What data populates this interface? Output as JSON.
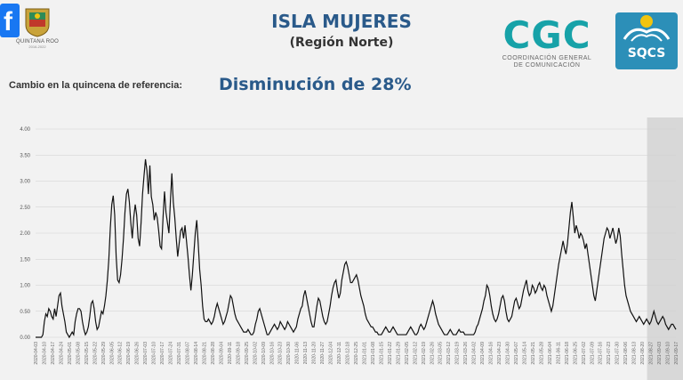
{
  "header": {
    "state_name": "QUINTANA ROO",
    "state_period": "2016-2022",
    "title": "ISLA MUJERES",
    "subtitle": "(Región Norte)",
    "cgc_logo": "CGC",
    "cgc_line1": "COORDINACIÓN GENERAL",
    "cgc_line2": "DE COMUNICACIÓN",
    "sqcs_logo": "SQCS",
    "change_label": "Cambio en la quincena de referencia:",
    "change_value": "Disminución de 28%"
  },
  "icons": {
    "facebook": "facebook-icon",
    "qroo_shield": "quintana-roo-shield-icon",
    "sqcs_emblem": "sqcs-emblem-icon"
  },
  "colors": {
    "title": "#2a5a8a",
    "cgc": "#17a2a8",
    "line": "#111111",
    "highlight": "#d3d3d3"
  },
  "chart_data": {
    "type": "line",
    "ylim": [
      0,
      4
    ],
    "yticks": [
      "0.00",
      "0.50",
      "1.00",
      "1.50",
      "2.00",
      "2.50",
      "3.00",
      "3.50",
      "4.00"
    ],
    "grid": true,
    "highlight_region": "last-fortnight",
    "xtick_labels": [
      "2020-04-03",
      "2020-04-10",
      "2020-04-17",
      "2020-04-24",
      "2020-05-01",
      "2020-05-08",
      "2020-05-15",
      "2020-05-22",
      "2020-05-29",
      "2020-06-05",
      "2020-06-12",
      "2020-06-19",
      "2020-06-26",
      "2020-07-03",
      "2020-07-10",
      "2020-07-17",
      "2020-07-24",
      "2020-07-31",
      "2020-08-07",
      "2020-08-14",
      "2020-08-21",
      "2020-08-28",
      "2020-09-04",
      "2020-09-11",
      "2020-09-18",
      "2020-09-25",
      "2020-10-02",
      "2020-10-09",
      "2020-10-16",
      "2020-10-23",
      "2020-10-30",
      "2020-11-06",
      "2020-11-13",
      "2020-11-20",
      "2020-11-27",
      "2020-12-04",
      "2020-12-11",
      "2020-12-18",
      "2020-12-25",
      "2021-01-01",
      "2021-01-08",
      "2021-01-15",
      "2021-01-22",
      "2021-01-29",
      "2021-02-05",
      "2021-02-12",
      "2021-02-19",
      "2021-02-26",
      "2021-03-05",
      "2021-03-12",
      "2021-03-19",
      "2021-03-26",
      "2021-04-02",
      "2021-04-09",
      "2021-04-16",
      "2021-04-23",
      "2021-04-30",
      "2021-05-07",
      "2021-05-14",
      "2021-05-21",
      "2021-05-28",
      "2021-06-04",
      "2021-06-11",
      "2021-06-18",
      "2021-06-25",
      "2021-07-02",
      "2021-07-09",
      "2021-07-16",
      "2021-07-23",
      "2021-07-30",
      "2021-08-06",
      "2021-08-13",
      "2021-08-20",
      "2021-08-27",
      "2021-09-03",
      "2021-09-10",
      "2021-09-17"
    ],
    "values": [
      0.0,
      0.0,
      0.0,
      0.0,
      0.0,
      0.05,
      0.3,
      0.45,
      0.4,
      0.55,
      0.5,
      0.4,
      0.35,
      0.55,
      0.4,
      0.6,
      0.8,
      0.85,
      0.6,
      0.45,
      0.3,
      0.1,
      0.05,
      0.0,
      0.05,
      0.1,
      0.05,
      0.3,
      0.45,
      0.55,
      0.55,
      0.5,
      0.3,
      0.15,
      0.05,
      0.1,
      0.2,
      0.4,
      0.65,
      0.7,
      0.55,
      0.3,
      0.15,
      0.2,
      0.35,
      0.5,
      0.45,
      0.6,
      0.8,
      1.1,
      1.5,
      2.1,
      2.55,
      2.72,
      2.35,
      1.55,
      1.1,
      1.05,
      1.2,
      1.5,
      1.9,
      2.4,
      2.75,
      2.85,
      2.6,
      2.2,
      1.9,
      2.3,
      2.55,
      2.35,
      1.9,
      1.75,
      2.2,
      2.75,
      3.1,
      3.42,
      3.2,
      2.75,
      3.3,
      2.7,
      2.55,
      2.25,
      2.4,
      2.3,
      2.05,
      1.75,
      1.7,
      2.3,
      2.8,
      2.4,
      2.2,
      2.0,
      2.6,
      3.15,
      2.6,
      2.3,
      1.9,
      1.55,
      1.8,
      2.05,
      2.1,
      1.9,
      2.15,
      1.85,
      1.55,
      1.2,
      0.9,
      1.2,
      1.6,
      2.0,
      2.25,
      1.8,
      1.3,
      1.0,
      0.6,
      0.35,
      0.3,
      0.3,
      0.35,
      0.3,
      0.25,
      0.3,
      0.4,
      0.55,
      0.65,
      0.55,
      0.45,
      0.35,
      0.25,
      0.3,
      0.4,
      0.5,
      0.65,
      0.8,
      0.75,
      0.6,
      0.45,
      0.35,
      0.3,
      0.25,
      0.2,
      0.15,
      0.1,
      0.1,
      0.1,
      0.15,
      0.1,
      0.05,
      0.05,
      0.1,
      0.25,
      0.35,
      0.5,
      0.55,
      0.45,
      0.35,
      0.25,
      0.15,
      0.05,
      0.05,
      0.1,
      0.15,
      0.2,
      0.25,
      0.2,
      0.15,
      0.2,
      0.3,
      0.25,
      0.2,
      0.15,
      0.2,
      0.3,
      0.25,
      0.2,
      0.15,
      0.1,
      0.15,
      0.2,
      0.35,
      0.45,
      0.55,
      0.6,
      0.8,
      0.9,
      0.75,
      0.6,
      0.45,
      0.3,
      0.2,
      0.2,
      0.4,
      0.6,
      0.75,
      0.7,
      0.55,
      0.4,
      0.3,
      0.25,
      0.3,
      0.45,
      0.6,
      0.8,
      0.95,
      1.05,
      1.1,
      0.9,
      0.75,
      0.85,
      1.1,
      1.25,
      1.4,
      1.45,
      1.35,
      1.2,
      1.05,
      1.05,
      1.1,
      1.15,
      1.2,
      1.1,
      0.95,
      0.8,
      0.7,
      0.6,
      0.45,
      0.35,
      0.3,
      0.25,
      0.2,
      0.2,
      0.15,
      0.1,
      0.1,
      0.05,
      0.05,
      0.05,
      0.1,
      0.15,
      0.2,
      0.15,
      0.1,
      0.1,
      0.15,
      0.2,
      0.15,
      0.1,
      0.05,
      0.05,
      0.05,
      0.05,
      0.05,
      0.05,
      0.05,
      0.1,
      0.15,
      0.2,
      0.15,
      0.1,
      0.05,
      0.05,
      0.1,
      0.2,
      0.25,
      0.2,
      0.15,
      0.2,
      0.3,
      0.4,
      0.5,
      0.6,
      0.7,
      0.6,
      0.45,
      0.35,
      0.25,
      0.2,
      0.15,
      0.1,
      0.05,
      0.05,
      0.05,
      0.1,
      0.15,
      0.1,
      0.05,
      0.05,
      0.05,
      0.1,
      0.15,
      0.1,
      0.1,
      0.1,
      0.05,
      0.05,
      0.05,
      0.05,
      0.05,
      0.05,
      0.05,
      0.1,
      0.2,
      0.25,
      0.35,
      0.45,
      0.55,
      0.7,
      0.8,
      1.0,
      0.95,
      0.8,
      0.6,
      0.45,
      0.35,
      0.3,
      0.35,
      0.45,
      0.6,
      0.75,
      0.8,
      0.7,
      0.5,
      0.35,
      0.3,
      0.35,
      0.4,
      0.55,
      0.7,
      0.75,
      0.65,
      0.55,
      0.6,
      0.75,
      0.9,
      1.0,
      1.1,
      0.9,
      0.8,
      0.85,
      1.0,
      0.95,
      0.85,
      0.9,
      1.0,
      1.05,
      0.95,
      0.9,
      1.0,
      0.95,
      0.8,
      0.7,
      0.6,
      0.5,
      0.6,
      0.8,
      1.0,
      1.2,
      1.4,
      1.55,
      1.7,
      1.85,
      1.7,
      1.6,
      1.8,
      2.1,
      2.4,
      2.6,
      2.3,
      2.0,
      2.15,
      2.05,
      1.9,
      2.0,
      1.95,
      1.85,
      1.7,
      1.8,
      1.6,
      1.4,
      1.2,
      1.0,
      0.8,
      0.7,
      0.9,
      1.1,
      1.3,
      1.5,
      1.7,
      1.9,
      2.0,
      2.1,
      2.05,
      1.9,
      2.0,
      2.1,
      1.95,
      1.8,
      1.9,
      2.1,
      1.95,
      1.6,
      1.3,
      1.0,
      0.8,
      0.7,
      0.6,
      0.5,
      0.45,
      0.4,
      0.35,
      0.3,
      0.35,
      0.4,
      0.35,
      0.3,
      0.25,
      0.3,
      0.35,
      0.3,
      0.25,
      0.3,
      0.4,
      0.5,
      0.4,
      0.3,
      0.25,
      0.3,
      0.35,
      0.4,
      0.35,
      0.25,
      0.2,
      0.15,
      0.2,
      0.25,
      0.25,
      0.2,
      0.15
    ]
  }
}
